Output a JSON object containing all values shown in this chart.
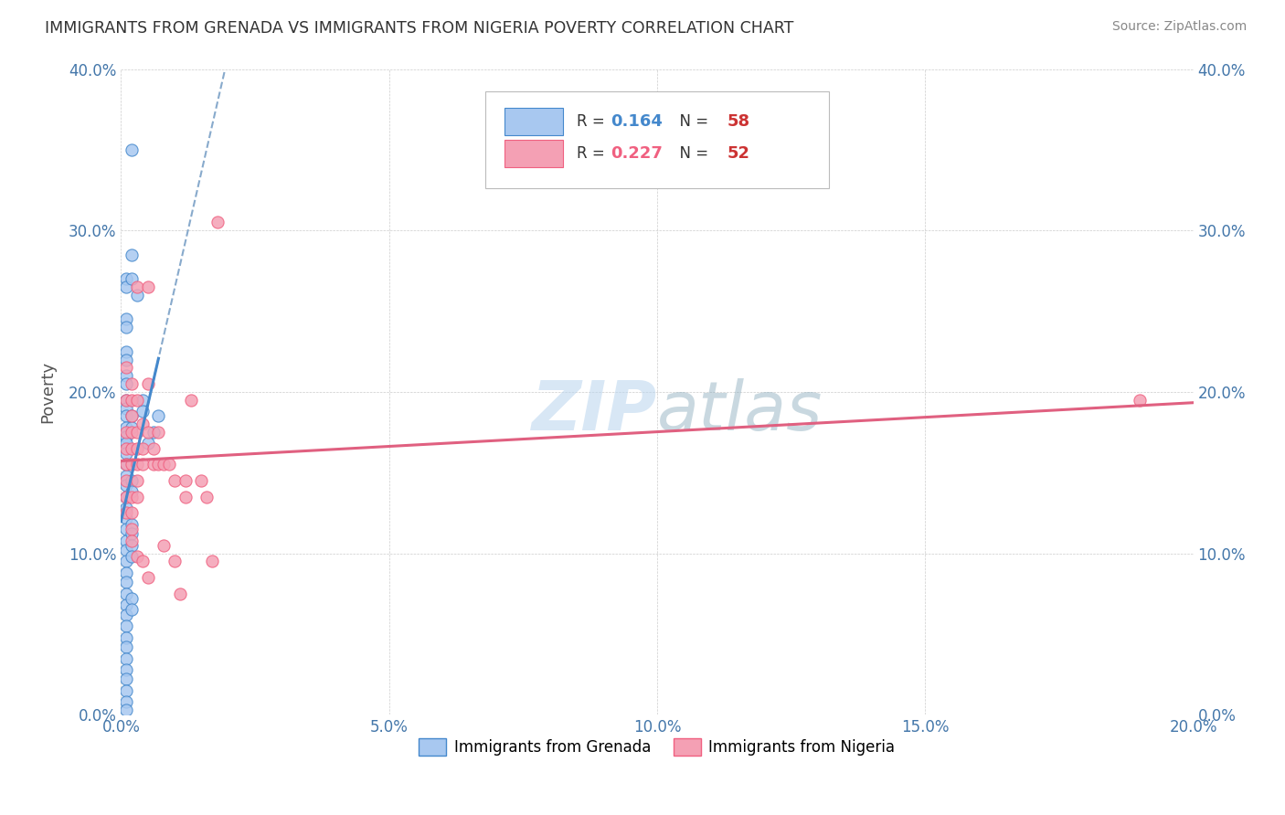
{
  "title": "IMMIGRANTS FROM GRENADA VS IMMIGRANTS FROM NIGERIA POVERTY CORRELATION CHART",
  "source": "Source: ZipAtlas.com",
  "xlabel_ticks": [
    "0.0%",
    "5.0%",
    "10.0%",
    "15.0%",
    "20.0%"
  ],
  "ylabel_ticks": [
    "0.0%",
    "10.0%",
    "20.0%",
    "30.0%",
    "40.0%"
  ],
  "xlim": [
    0.0,
    0.2
  ],
  "ylim": [
    0.0,
    0.4
  ],
  "grenada_color": "#a8c8f0",
  "nigeria_color": "#f4a0b4",
  "grenada_edge_color": "#4488cc",
  "nigeria_edge_color": "#f06080",
  "trendline_grenada_color": "#88aacc",
  "trendline_nigeria_color": "#e06080",
  "watermark": "ZIPatlas",
  "grenada_scatter": [
    [
      0.001,
      0.27
    ],
    [
      0.001,
      0.265
    ],
    [
      0.001,
      0.245
    ],
    [
      0.001,
      0.24
    ],
    [
      0.001,
      0.225
    ],
    [
      0.001,
      0.22
    ],
    [
      0.001,
      0.21
    ],
    [
      0.001,
      0.205
    ],
    [
      0.001,
      0.195
    ],
    [
      0.001,
      0.19
    ],
    [
      0.001,
      0.185
    ],
    [
      0.001,
      0.178
    ],
    [
      0.001,
      0.172
    ],
    [
      0.001,
      0.168
    ],
    [
      0.001,
      0.162
    ],
    [
      0.001,
      0.155
    ],
    [
      0.001,
      0.148
    ],
    [
      0.001,
      0.142
    ],
    [
      0.001,
      0.135
    ],
    [
      0.001,
      0.128
    ],
    [
      0.001,
      0.122
    ],
    [
      0.001,
      0.115
    ],
    [
      0.001,
      0.108
    ],
    [
      0.001,
      0.102
    ],
    [
      0.001,
      0.095
    ],
    [
      0.001,
      0.088
    ],
    [
      0.001,
      0.082
    ],
    [
      0.001,
      0.075
    ],
    [
      0.001,
      0.068
    ],
    [
      0.001,
      0.062
    ],
    [
      0.001,
      0.055
    ],
    [
      0.001,
      0.048
    ],
    [
      0.001,
      0.042
    ],
    [
      0.001,
      0.035
    ],
    [
      0.001,
      0.028
    ],
    [
      0.001,
      0.022
    ],
    [
      0.001,
      0.015
    ],
    [
      0.001,
      0.008
    ],
    [
      0.001,
      0.003
    ],
    [
      0.002,
      0.35
    ],
    [
      0.002,
      0.285
    ],
    [
      0.002,
      0.27
    ],
    [
      0.002,
      0.185
    ],
    [
      0.002,
      0.178
    ],
    [
      0.002,
      0.145
    ],
    [
      0.002,
      0.138
    ],
    [
      0.002,
      0.118
    ],
    [
      0.002,
      0.112
    ],
    [
      0.002,
      0.105
    ],
    [
      0.002,
      0.098
    ],
    [
      0.002,
      0.072
    ],
    [
      0.002,
      0.065
    ],
    [
      0.003,
      0.26
    ],
    [
      0.004,
      0.195
    ],
    [
      0.004,
      0.188
    ],
    [
      0.005,
      0.168
    ],
    [
      0.006,
      0.175
    ],
    [
      0.007,
      0.185
    ]
  ],
  "nigeria_scatter": [
    [
      0.001,
      0.215
    ],
    [
      0.001,
      0.195
    ],
    [
      0.001,
      0.175
    ],
    [
      0.001,
      0.165
    ],
    [
      0.001,
      0.155
    ],
    [
      0.001,
      0.145
    ],
    [
      0.001,
      0.135
    ],
    [
      0.001,
      0.125
    ],
    [
      0.002,
      0.205
    ],
    [
      0.002,
      0.195
    ],
    [
      0.002,
      0.185
    ],
    [
      0.002,
      0.175
    ],
    [
      0.002,
      0.165
    ],
    [
      0.002,
      0.155
    ],
    [
      0.002,
      0.135
    ],
    [
      0.002,
      0.125
    ],
    [
      0.002,
      0.115
    ],
    [
      0.002,
      0.108
    ],
    [
      0.003,
      0.265
    ],
    [
      0.003,
      0.195
    ],
    [
      0.003,
      0.175
    ],
    [
      0.003,
      0.165
    ],
    [
      0.003,
      0.155
    ],
    [
      0.003,
      0.145
    ],
    [
      0.003,
      0.135
    ],
    [
      0.003,
      0.098
    ],
    [
      0.004,
      0.18
    ],
    [
      0.004,
      0.165
    ],
    [
      0.004,
      0.155
    ],
    [
      0.004,
      0.095
    ],
    [
      0.005,
      0.265
    ],
    [
      0.005,
      0.205
    ],
    [
      0.005,
      0.175
    ],
    [
      0.005,
      0.085
    ],
    [
      0.006,
      0.165
    ],
    [
      0.006,
      0.155
    ],
    [
      0.007,
      0.175
    ],
    [
      0.007,
      0.155
    ],
    [
      0.008,
      0.155
    ],
    [
      0.008,
      0.105
    ],
    [
      0.009,
      0.155
    ],
    [
      0.01,
      0.145
    ],
    [
      0.01,
      0.095
    ],
    [
      0.011,
      0.075
    ],
    [
      0.012,
      0.145
    ],
    [
      0.012,
      0.135
    ],
    [
      0.013,
      0.195
    ],
    [
      0.015,
      0.145
    ],
    [
      0.016,
      0.135
    ],
    [
      0.017,
      0.095
    ],
    [
      0.018,
      0.305
    ],
    [
      0.19,
      0.195
    ]
  ]
}
